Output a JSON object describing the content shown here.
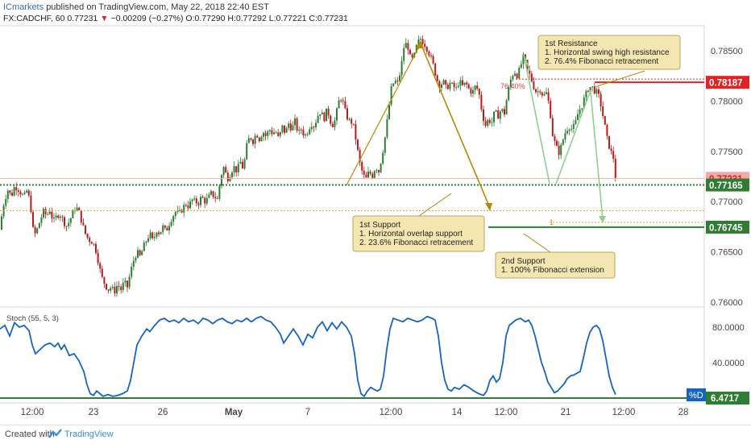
{
  "header": {
    "brand": "ICmarkets",
    "published": "published on TradingView.com, May 22, 2018 22:40 EST",
    "symbol": "FX:CADCHF, 60",
    "last": "0.77231",
    "change_arrow": "▼",
    "change": "−0.00209 (−0.27%)",
    "ohlc": "O:0.77290 H:0.77292 L:0.77221 C:0.77231"
  },
  "chart_data": {
    "type": "candlestick",
    "symbol": "CADCHF",
    "timeframe": "60",
    "y_axis": {
      "min": 0.7595,
      "max": 0.7875,
      "ticks": [
        "0.78500",
        "0.78000",
        "0.77500",
        "0.77000",
        "0.76500",
        "0.76000"
      ]
    },
    "x_ticks": [
      "12:00",
      "23",
      "26",
      "May",
      "7",
      "12:00",
      "14",
      "12:00",
      "21",
      "12:00",
      "28"
    ],
    "price_path": [
      [
        0,
        0.7672
      ],
      [
        3,
        0.7692
      ],
      [
        6,
        0.7702
      ],
      [
        10,
        0.7712
      ],
      [
        14,
        0.7705
      ],
      [
        18,
        0.7715
      ],
      [
        22,
        0.7713
      ],
      [
        26,
        0.7708
      ],
      [
        30,
        0.7705
      ],
      [
        34,
        0.7712
      ],
      [
        38,
        0.7695
      ],
      [
        40,
        0.768
      ],
      [
        42,
        0.7665
      ],
      [
        46,
        0.7672
      ],
      [
        50,
        0.7682
      ],
      [
        54,
        0.769
      ],
      [
        58,
        0.7686
      ],
      [
        62,
        0.7692
      ],
      [
        66,
        0.768
      ],
      [
        70,
        0.7685
      ],
      [
        74,
        0.7688
      ],
      [
        78,
        0.7682
      ],
      [
        82,
        0.7675
      ],
      [
        86,
        0.768
      ],
      [
        90,
        0.7688
      ],
      [
        94,
        0.7695
      ],
      [
        98,
        0.769
      ],
      [
        102,
        0.7678
      ],
      [
        106,
        0.7668
      ],
      [
        110,
        0.7662
      ],
      [
        114,
        0.766
      ],
      [
        118,
        0.7655
      ],
      [
        122,
        0.764
      ],
      [
        126,
        0.7625
      ],
      [
        130,
        0.7618
      ],
      [
        134,
        0.7612
      ],
      [
        138,
        0.7615
      ],
      [
        142,
        0.761
      ],
      [
        146,
        0.7618
      ],
      [
        150,
        0.7612
      ],
      [
        154,
        0.762
      ],
      [
        158,
        0.7615
      ],
      [
        162,
        0.763
      ],
      [
        166,
        0.7642
      ],
      [
        170,
        0.765
      ],
      [
        174,
        0.7645
      ],
      [
        178,
        0.7655
      ],
      [
        182,
        0.7662
      ],
      [
        186,
        0.7668
      ],
      [
        190,
        0.766
      ],
      [
        194,
        0.7672
      ],
      [
        198,
        0.7668
      ],
      [
        202,
        0.7675
      ],
      [
        206,
        0.767
      ],
      [
        210,
        0.7678
      ],
      [
        214,
        0.7685
      ],
      [
        218,
        0.769
      ],
      [
        222,
        0.7688
      ],
      [
        226,
        0.7692
      ],
      [
        230,
        0.7698
      ],
      [
        234,
        0.7695
      ],
      [
        238,
        0.7702
      ],
      [
        242,
        0.77
      ],
      [
        246,
        0.7698
      ],
      [
        250,
        0.7705
      ],
      [
        254,
        0.77
      ],
      [
        258,
        0.7703
      ],
      [
        262,
        0.7708
      ],
      [
        266,
        0.7705
      ],
      [
        270,
        0.7702
      ],
      [
        274,
        0.7725
      ],
      [
        278,
        0.7735
      ],
      [
        282,
        0.7722
      ],
      [
        286,
        0.7728
      ],
      [
        290,
        0.7735
      ],
      [
        294,
        0.773
      ],
      [
        298,
        0.774
      ],
      [
        302,
        0.7732
      ],
      [
        306,
        0.7755
      ],
      [
        310,
        0.7765
      ],
      [
        314,
        0.776
      ],
      [
        318,
        0.7768
      ],
      [
        322,
        0.7762
      ],
      [
        326,
        0.777
      ],
      [
        330,
        0.7765
      ],
      [
        334,
        0.7772
      ],
      [
        338,
        0.7768
      ],
      [
        342,
        0.777
      ],
      [
        346,
        0.7762
      ],
      [
        350,
        0.7775
      ],
      [
        354,
        0.7768
      ],
      [
        358,
        0.7778
      ],
      [
        362,
        0.7772
      ],
      [
        366,
        0.778
      ],
      [
        370,
        0.7768
      ],
      [
        374,
        0.7772
      ],
      [
        378,
        0.7765
      ],
      [
        382,
        0.777
      ],
      [
        386,
        0.7778
      ],
      [
        390,
        0.7775
      ],
      [
        394,
        0.7785
      ],
      [
        398,
        0.779
      ],
      [
        402,
        0.7782
      ],
      [
        406,
        0.7792
      ],
      [
        410,
        0.778
      ],
      [
        414,
        0.7775
      ],
      [
        418,
        0.779
      ],
      [
        422,
        0.7805
      ],
      [
        426,
        0.7798
      ],
      [
        430,
        0.7785
      ],
      [
        434,
        0.778
      ],
      [
        438,
        0.7778
      ],
      [
        442,
        0.776
      ],
      [
        446,
        0.774
      ],
      [
        450,
        0.7728
      ],
      [
        454,
        0.7722
      ],
      [
        458,
        0.773
      ],
      [
        462,
        0.7725
      ],
      [
        466,
        0.7735
      ],
      [
        470,
        0.773
      ],
      [
        474,
        0.7745
      ],
      [
        478,
        0.7765
      ],
      [
        482,
        0.779
      ],
      [
        486,
        0.7815
      ],
      [
        490,
        0.782
      ],
      [
        494,
        0.7818
      ],
      [
        498,
        0.7835
      ],
      [
        502,
        0.7858
      ],
      [
        506,
        0.7855
      ],
      [
        510,
        0.784
      ],
      [
        514,
        0.7845
      ],
      [
        518,
        0.7858
      ],
      [
        522,
        0.7862
      ],
      [
        526,
        0.7858
      ],
      [
        530,
        0.7852
      ],
      [
        534,
        0.7845
      ],
      [
        538,
        0.7835
      ],
      [
        542,
        0.7822
      ],
      [
        546,
        0.7815
      ],
      [
        550,
        0.782
      ],
      [
        554,
        0.7812
      ],
      [
        558,
        0.7818
      ],
      [
        562,
        0.7815
      ],
      [
        566,
        0.7812
      ],
      [
        570,
        0.782
      ],
      [
        574,
        0.7815
      ],
      [
        578,
        0.7818
      ],
      [
        582,
        0.7812
      ],
      [
        586,
        0.7808
      ],
      [
        590,
        0.7815
      ],
      [
        594,
        0.781
      ],
      [
        598,
        0.779
      ],
      [
        602,
        0.7775
      ],
      [
        606,
        0.7782
      ],
      [
        610,
        0.7778
      ],
      [
        614,
        0.779
      ],
      [
        618,
        0.7785
      ],
      [
        622,
        0.7792
      ],
      [
        626,
        0.7788
      ],
      [
        630,
        0.7808
      ],
      [
        634,
        0.7822
      ],
      [
        638,
        0.783
      ],
      [
        642,
        0.7825
      ],
      [
        646,
        0.7835
      ],
      [
        650,
        0.7845
      ],
      [
        654,
        0.7832
      ],
      [
        658,
        0.7825
      ],
      [
        662,
        0.7815
      ],
      [
        666,
        0.7808
      ],
      [
        670,
        0.7812
      ],
      [
        674,
        0.7805
      ],
      [
        678,
        0.7808
      ],
      [
        682,
        0.7795
      ],
      [
        686,
        0.7765
      ],
      [
        690,
        0.7755
      ],
      [
        694,
        0.7748
      ],
      [
        698,
        0.776
      ],
      [
        702,
        0.777
      ],
      [
        706,
        0.7775
      ],
      [
        710,
        0.7772
      ],
      [
        714,
        0.7778
      ],
      [
        718,
        0.779
      ],
      [
        722,
        0.7795
      ],
      [
        726,
        0.7805
      ],
      [
        730,
        0.7812
      ],
      [
        734,
        0.7815
      ],
      [
        738,
        0.781
      ],
      [
        742,
        0.7808
      ],
      [
        746,
        0.7795
      ],
      [
        750,
        0.7778
      ],
      [
        754,
        0.776
      ],
      [
        758,
        0.775
      ],
      [
        762,
        0.7742
      ],
      [
        764,
        0.7723
      ]
    ],
    "levels": [
      {
        "label": "0.78187",
        "value": 0.78187,
        "color": "#e02424"
      },
      {
        "label": "0.77231",
        "value": 0.77231,
        "color": "#f4a8a8"
      },
      {
        "label": "0.77165",
        "value": 0.77165,
        "color": "#2e7d32"
      },
      {
        "label": "0.76745",
        "value": 0.76745,
        "color": "#2e7d32"
      }
    ],
    "orange_dotted": 0.7691,
    "fib_236_label": "1",
    "fib_764_label": "76.40%",
    "annotations": [
      {
        "title": "1st Resistance",
        "lines": [
          "1. Horizontal swing high resistance",
          "2. 76.4% Fibonacci retracement"
        ]
      },
      {
        "title": "1st Support",
        "lines": [
          "1. Horizontal overlap support",
          "2. 23.6% Fibonacci retracement"
        ]
      },
      {
        "title": "2nd Support",
        "lines": [
          "1. 100% Fibonacci extension"
        ]
      }
    ],
    "stoch": {
      "label": "Stoch (55, 5, 3)",
      "y_ticks": [
        "80.0000",
        "40.0000"
      ],
      "value_label": "6.4717",
      "pct_d_label": "%D",
      "min": 0,
      "max": 100,
      "path": [
        [
          0,
          78
        ],
        [
          6,
          82
        ],
        [
          12,
          70
        ],
        [
          18,
          85
        ],
        [
          24,
          80
        ],
        [
          30,
          82
        ],
        [
          36,
          76
        ],
        [
          40,
          60
        ],
        [
          44,
          50
        ],
        [
          50,
          55
        ],
        [
          56,
          60
        ],
        [
          62,
          62
        ],
        [
          68,
          58
        ],
        [
          72,
          62
        ],
        [
          76,
          55
        ],
        [
          80,
          60
        ],
        [
          86,
          48
        ],
        [
          92,
          50
        ],
        [
          98,
          42
        ],
        [
          104,
          30
        ],
        [
          108,
          15
        ],
        [
          112,
          5
        ],
        [
          116,
          3
        ],
        [
          120,
          8
        ],
        [
          124,
          5
        ],
        [
          128,
          2
        ],
        [
          134,
          4
        ],
        [
          140,
          2
        ],
        [
          146,
          3
        ],
        [
          152,
          5
        ],
        [
          158,
          8
        ],
        [
          162,
          20
        ],
        [
          166,
          40
        ],
        [
          170,
          60
        ],
        [
          176,
          70
        ],
        [
          182,
          78
        ],
        [
          186,
          75
        ],
        [
          192,
          82
        ],
        [
          198,
          88
        ],
        [
          204,
          90
        ],
        [
          210,
          86
        ],
        [
          216,
          88
        ],
        [
          222,
          85
        ],
        [
          228,
          90
        ],
        [
          234,
          86
        ],
        [
          240,
          88
        ],
        [
          246,
          84
        ],
        [
          252,
          90
        ],
        [
          258,
          88
        ],
        [
          264,
          84
        ],
        [
          270,
          88
        ],
        [
          276,
          90
        ],
        [
          282,
          86
        ],
        [
          288,
          84
        ],
        [
          294,
          88
        ],
        [
          300,
          86
        ],
        [
          306,
          90
        ],
        [
          312,
          86
        ],
        [
          318,
          90
        ],
        [
          324,
          92
        ],
        [
          330,
          88
        ],
        [
          336,
          86
        ],
        [
          342,
          80
        ],
        [
          348,
          72
        ],
        [
          352,
          62
        ],
        [
          358,
          70
        ],
        [
          364,
          78
        ],
        [
          370,
          70
        ],
        [
          376,
          60
        ],
        [
          382,
          72
        ],
        [
          388,
          68
        ],
        [
          394,
          80
        ],
        [
          400,
          86
        ],
        [
          406,
          76
        ],
        [
          412,
          85
        ],
        [
          418,
          78
        ],
        [
          424,
          86
        ],
        [
          430,
          80
        ],
        [
          436,
          70
        ],
        [
          440,
          50
        ],
        [
          444,
          20
        ],
        [
          448,
          5
        ],
        [
          452,
          2
        ],
        [
          456,
          8
        ],
        [
          460,
          12
        ],
        [
          464,
          10
        ],
        [
          468,
          8
        ],
        [
          472,
          10
        ],
        [
          476,
          25
        ],
        [
          480,
          55
        ],
        [
          484,
          78
        ],
        [
          488,
          90
        ],
        [
          494,
          88
        ],
        [
          500,
          86
        ],
        [
          506,
          90
        ],
        [
          512,
          88
        ],
        [
          518,
          86
        ],
        [
          524,
          88
        ],
        [
          530,
          92
        ],
        [
          536,
          90
        ],
        [
          540,
          88
        ],
        [
          544,
          70
        ],
        [
          548,
          40
        ],
        [
          552,
          20
        ],
        [
          556,
          10
        ],
        [
          560,
          8
        ],
        [
          564,
          12
        ],
        [
          570,
          10
        ],
        [
          576,
          15
        ],
        [
          582,
          12
        ],
        [
          588,
          8
        ],
        [
          594,
          5
        ],
        [
          600,
          3
        ],
        [
          604,
          8
        ],
        [
          608,
          20
        ],
        [
          612,
          25
        ],
        [
          616,
          18
        ],
        [
          620,
          22
        ],
        [
          624,
          40
        ],
        [
          628,
          70
        ],
        [
          632,
          82
        ],
        [
          636,
          85
        ],
        [
          640,
          88
        ],
        [
          646,
          90
        ],
        [
          652,
          86
        ],
        [
          656,
          88
        ],
        [
          660,
          82
        ],
        [
          664,
          70
        ],
        [
          668,
          55
        ],
        [
          672,
          40
        ],
        [
          676,
          30
        ],
        [
          680,
          18
        ],
        [
          684,
          12
        ],
        [
          688,
          6
        ],
        [
          692,
          8
        ],
        [
          696,
          12
        ],
        [
          700,
          16
        ],
        [
          704,
          22
        ],
        [
          708,
          25
        ],
        [
          712,
          26
        ],
        [
          716,
          28
        ],
        [
          720,
          30
        ],
        [
          724,
          45
        ],
        [
          728,
          62
        ],
        [
          732,
          74
        ],
        [
          736,
          80
        ],
        [
          740,
          82
        ],
        [
          744,
          78
        ],
        [
          748,
          65
        ],
        [
          752,
          45
        ],
        [
          756,
          25
        ],
        [
          760,
          12
        ],
        [
          764,
          4
        ]
      ]
    }
  },
  "footer": {
    "created": "Created with",
    "brand": "TradingView"
  }
}
